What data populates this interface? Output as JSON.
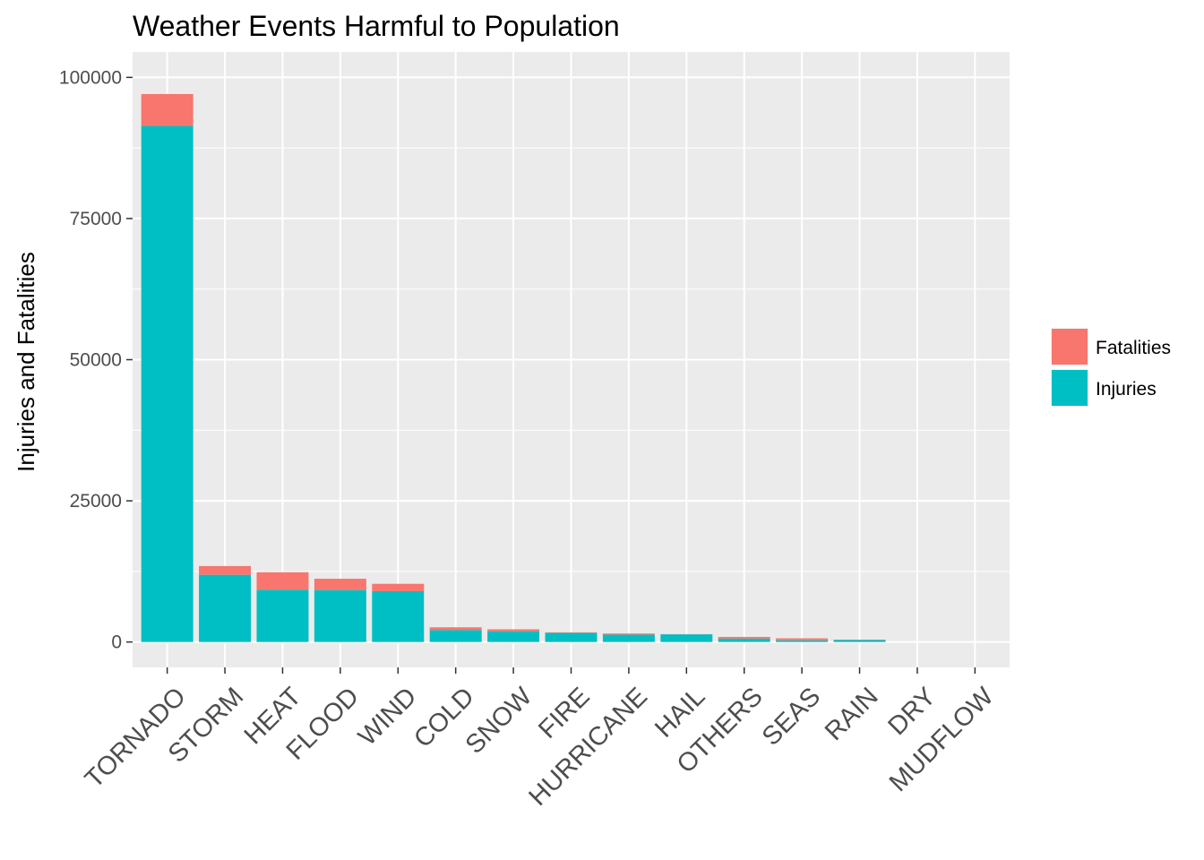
{
  "chart_data": {
    "type": "bar",
    "stacked": true,
    "title": "Weather Events Harmful to Population",
    "xlabel": "",
    "ylabel": "Injuries and Fatalities",
    "ylim": [
      -4500,
      104500
    ],
    "y_ticks": [
      0,
      25000,
      50000,
      75000,
      100000
    ],
    "y_tick_labels": [
      "0",
      "25000",
      "50000",
      "75000",
      "100000"
    ],
    "grid": true,
    "legend_position": "right",
    "categories": [
      "TORNADO",
      "STORM",
      "HEAT",
      "FLOOD",
      "WIND",
      "COLD",
      "SNOW",
      "FIRE",
      "HURRICANE",
      "HAIL",
      "OTHERS",
      "SEAS",
      "RAIN",
      "DRY",
      "MUDFLOW"
    ],
    "series": [
      {
        "name": "Injuries",
        "color": "#00bfc4",
        "values": [
          91400,
          11900,
          9250,
          9200,
          9000,
          2100,
          1900,
          1600,
          1300,
          1350,
          600,
          300,
          350,
          0,
          0
        ]
      },
      {
        "name": "Fatalities",
        "color": "#f8766d",
        "values": [
          5650,
          1550,
          3100,
          2000,
          1300,
          500,
          350,
          100,
          200,
          40,
          300,
          350,
          60,
          0,
          0
        ]
      }
    ],
    "legend_order": [
      "Fatalities",
      "Injuries"
    ],
    "panel_background": "#ebebeb",
    "gridline_color": "#ffffff"
  }
}
